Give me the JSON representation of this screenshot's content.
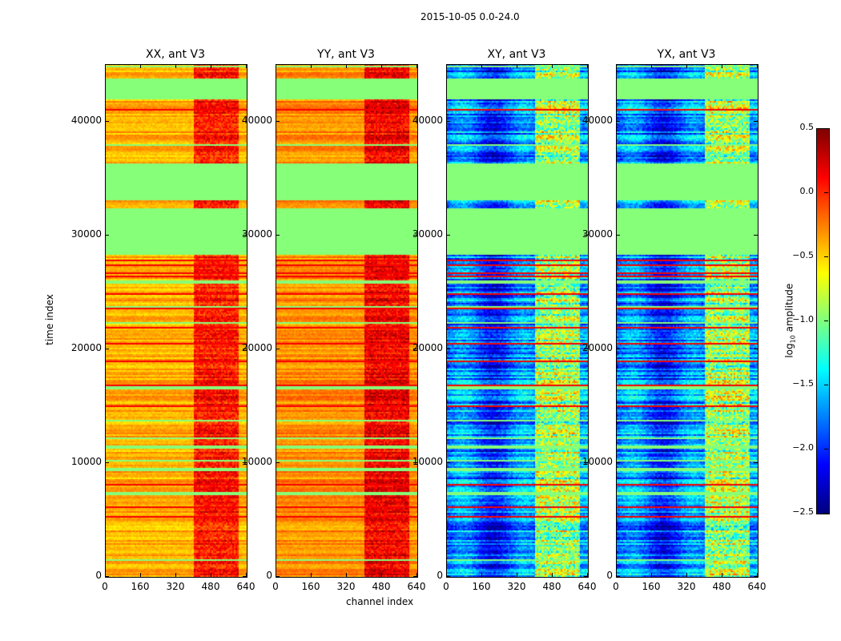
{
  "chart_data": {
    "type": "heatmap",
    "title": "2015-10-05 0.0-24.0",
    "xlabel": "channel index",
    "ylabel": "time index",
    "xlim": [
      0,
      640
    ],
    "ylim": [
      0,
      45000
    ],
    "xticks": [
      0,
      160,
      320,
      480,
      640
    ],
    "yticks": [
      0,
      10000,
      20000,
      30000,
      40000
    ],
    "xtick_labels": [
      "0",
      "160",
      "320",
      "480",
      "640"
    ],
    "ytick_labels": [
      "0",
      "10000",
      "20000",
      "30000",
      "40000"
    ],
    "colormap": "jet",
    "colorbar": {
      "label": "log10 amplitude",
      "label_base": "log",
      "label_sub": "10",
      "label_rest": " amplitude",
      "range": [
        -2.5,
        0.5
      ],
      "ticks": [
        0.5,
        0.0,
        -0.5,
        -1.0,
        -1.5,
        -2.0,
        -2.5
      ],
      "tick_labels": [
        "0.5",
        "0.0",
        "−0.5",
        "−1.0",
        "−1.5",
        "−2.0",
        "−2.5"
      ]
    },
    "flagged_value": -1.0,
    "flagged_time_ranges": [
      [
        28300,
        30900
      ],
      [
        31000,
        32400
      ],
      [
        33000,
        34400
      ],
      [
        34500,
        36300
      ],
      [
        41900,
        43800
      ],
      [
        16500,
        16700
      ],
      [
        9300,
        9500
      ]
    ],
    "bright_channel_range": [
      400,
      600
    ],
    "panels": [
      {
        "title": "XX, ant V3",
        "base_log_amp": -0.4,
        "bright_log_amp": 0.05,
        "noise": 0.15
      },
      {
        "title": "YY, ant V3",
        "base_log_amp": -0.3,
        "bright_log_amp": 0.15,
        "noise": 0.15
      },
      {
        "title": "XY, ant V3",
        "base_log_amp": -1.75,
        "bright_log_amp": -0.9,
        "noise": 0.35
      },
      {
        "title": "YX, ant V3",
        "base_log_amp": -1.75,
        "bright_log_amp": -0.9,
        "noise": 0.35
      }
    ]
  }
}
